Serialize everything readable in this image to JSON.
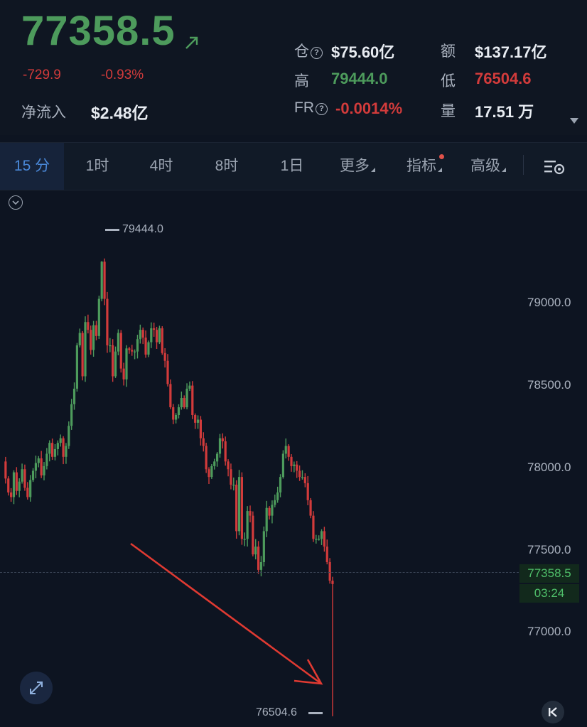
{
  "ticker": {
    "last_price": "77358.5",
    "change_abs": "-729.9",
    "change_pct": "-0.93%",
    "net_inflow_label": "净流入",
    "net_inflow_value": "$2.48亿"
  },
  "stats": {
    "open_interest_label": "仓",
    "open_interest_value": "$75.60亿",
    "amount_label": "额",
    "amount_value": "$137.17亿",
    "high_label": "高",
    "high_value": "79444.0",
    "low_label": "低",
    "low_value": "76504.6",
    "funding_label": "FR",
    "funding_value": "-0.0014%",
    "volume_label": "量",
    "volume_value": "17.51 万"
  },
  "tabs": [
    {
      "label": "15 分",
      "active": true
    },
    {
      "label": "1时"
    },
    {
      "label": "4时"
    },
    {
      "label": "8时"
    },
    {
      "label": "1日"
    },
    {
      "label": "更多"
    },
    {
      "label": "指标"
    },
    {
      "label": "高级"
    }
  ],
  "icons": {
    "trend": "arrow-up-right-icon",
    "info": "question-circle-icon",
    "settings": "chart-settings-icon",
    "collapse": "chevron-down-circle-icon",
    "expand": "expand-arrows-icon",
    "back": "skip-back-icon"
  },
  "colors": {
    "up": "#4d9b5c",
    "down": "#d23b3b",
    "accent": "#4a88d8",
    "background": "#0d1421",
    "annotation_arrow": "#e03a32"
  },
  "chart_data": {
    "type": "candlestick",
    "interval": "15 分",
    "y_ticks": [
      "79000.0",
      "78500.0",
      "78000.0",
      "77500.0",
      "77000.0"
    ],
    "ylim": [
      76440,
      79900
    ],
    "current_price_label": "77358.5",
    "countdown": "03:24",
    "high_marker": "79444.0",
    "low_marker": "76504.6",
    "closes": [
      78150,
      78040,
      77950,
      77920,
      78080,
      77960,
      78020,
      78100,
      77980,
      77920,
      78030,
      78090,
      78140,
      78170,
      78060,
      78120,
      78200,
      78270,
      78180,
      78230,
      78270,
      78300,
      78180,
      78250,
      78380,
      78520,
      78620,
      78900,
      78980,
      78700,
      79050,
      79000,
      78870,
      79030,
      78960,
      79200,
      79440,
      79200,
      78900,
      78900,
      78700,
      78860,
      78980,
      78750,
      78680,
      78880,
      78870,
      78860,
      78860,
      78940,
      79000,
      78950,
      78840,
      78920,
      79010,
      79000,
      78920,
      79010,
      78850,
      78800,
      78650,
      78500,
      78420,
      78450,
      78500,
      78560,
      78500,
      78620,
      78640,
      78450,
      78400,
      78420,
      78300,
      78250,
      78100,
      78050,
      78120,
      78150,
      78200,
      78300,
      78280,
      78150,
      78100,
      78000,
      78000,
      77700,
      78050,
      77650,
      77650,
      77830,
      77800,
      77550,
      77600,
      77450,
      77500,
      77700,
      77850,
      77800,
      77870,
      77900,
      77950,
      78050,
      78200,
      78250,
      78180,
      78120,
      78130,
      78090,
      78050,
      78050,
      78010,
      77900,
      77800,
      77650,
      77650,
      77650,
      77700,
      77600,
      77500,
      77380,
      77358.5
    ]
  },
  "annotation": {
    "type": "red arrow pointing to low"
  }
}
